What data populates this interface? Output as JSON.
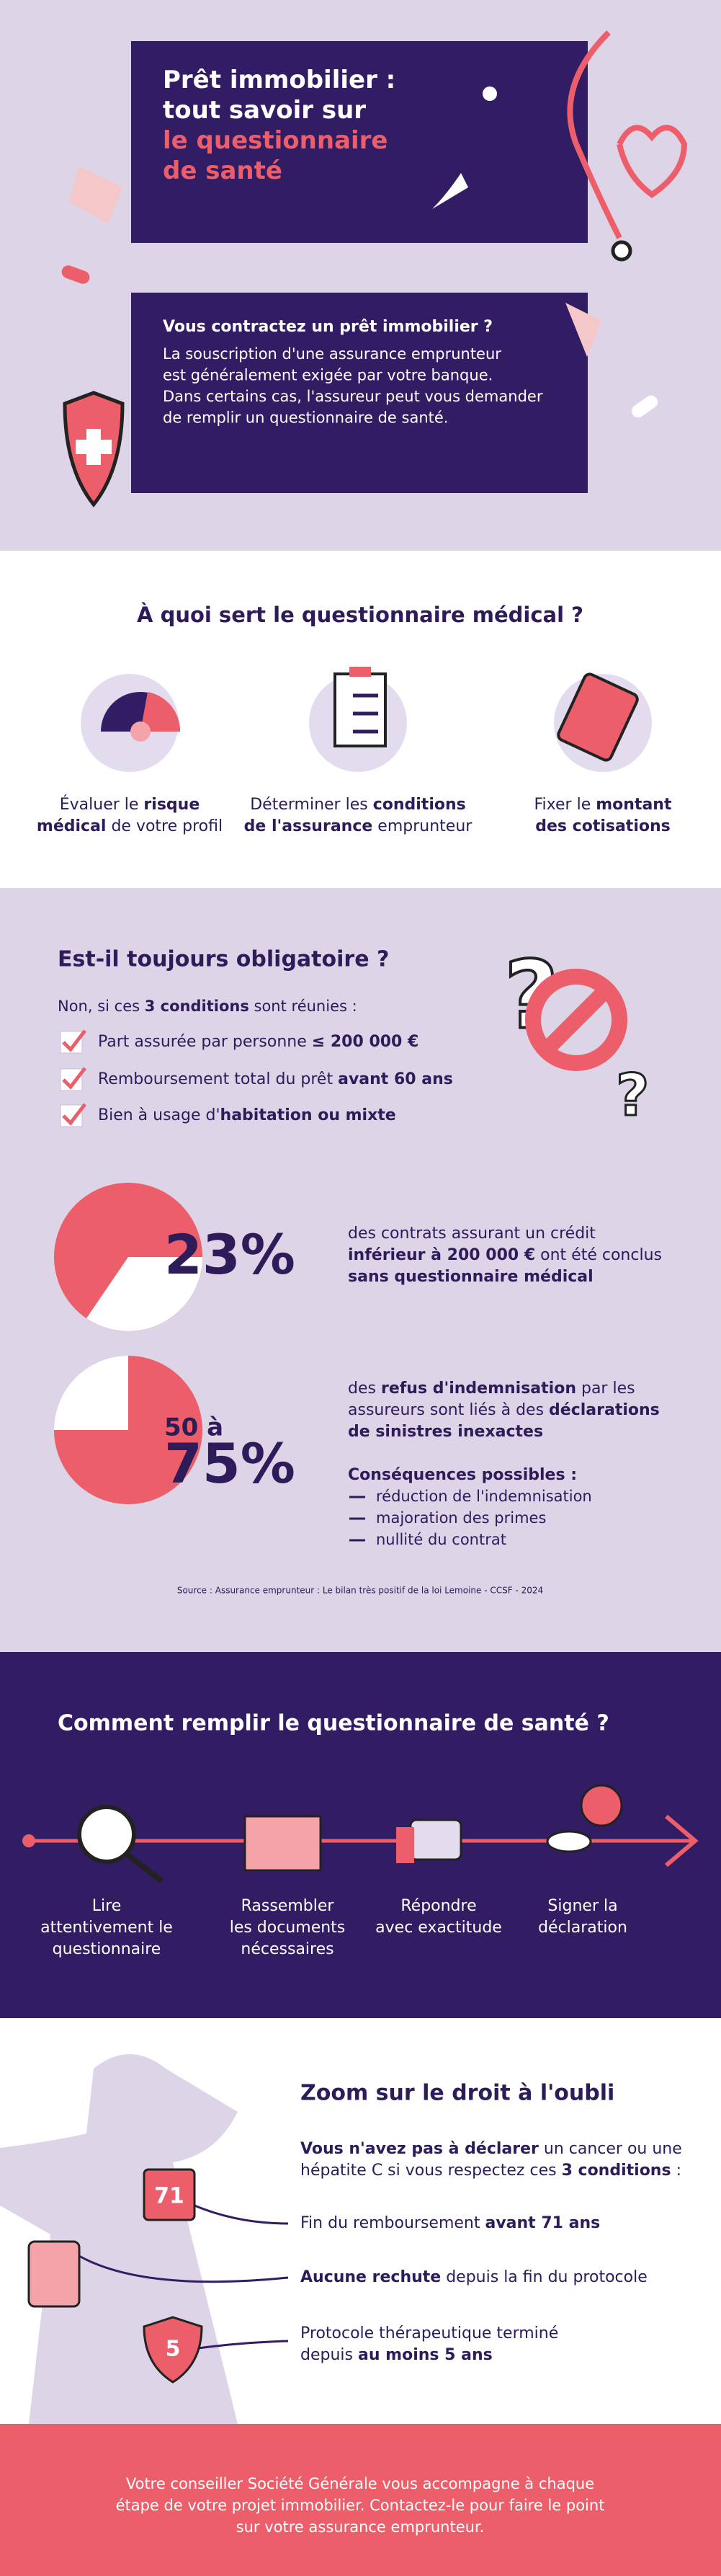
{
  "header": {
    "title": [
      [
        "Prêt immobilier :"
      ],
      [
        "tout savoir sur"
      ],
      [
        {
          "text": "le questionnaire",
          "highlight": true
        }
      ],
      [
        {
          "text": "de santé",
          "highlight": true
        }
      ]
    ],
    "intro_heading": "Vous contractez un prêt immobilier ?",
    "intro_body": [
      "La souscription d'une assurance emprunteur",
      "est généralement exigée par votre banque.",
      "Dans certains cas, l'assureur peut vous demander",
      "de remplir un questionnaire de santé."
    ]
  },
  "purpose": {
    "heading": "À quoi sert le questionnaire médical ?",
    "items": [
      [
        [
          {
            "text": "Évaluer le "
          },
          {
            "text": "risque",
            "bold": true
          }
        ],
        [
          {
            "text": "médical",
            "bold": true
          },
          {
            "text": " de votre profil"
          }
        ]
      ],
      [
        [
          {
            "text": "Déterminer les "
          },
          {
            "text": "conditions",
            "bold": true
          }
        ],
        [
          {
            "text": "de l'assurance",
            "bold": true
          },
          {
            "text": " emprunteur"
          }
        ]
      ],
      [
        [
          {
            "text": "Fixer le "
          },
          {
            "text": "montant",
            "bold": true
          }
        ],
        [
          {
            "text": "des cotisations",
            "bold": true
          }
        ]
      ]
    ]
  },
  "mandatory": {
    "heading": "Est-il toujours obligatoire ?",
    "intro": [
      [
        {
          "text": "Non, si ces "
        },
        {
          "text": "3 conditions",
          "bold": true
        },
        {
          "text": " sont réunies :"
        }
      ]
    ],
    "conditions": [
      [
        [
          {
            "text": "Part assurée par personne "
          },
          {
            "text": "≤ 200 000 €",
            "bold": true
          }
        ]
      ],
      [
        [
          {
            "text": "Remboursement total du prêt "
          },
          {
            "text": "avant 60 ans",
            "bold": true
          }
        ]
      ],
      [
        [
          {
            "text": "Bien à usage d'"
          },
          {
            "text": "habitation ou mixte",
            "bold": true
          }
        ]
      ]
    ],
    "stats": [
      {
        "figure": [
          "23%"
        ],
        "text": [
          [
            "des contrats assurant un crédit"
          ],
          [
            {
              "text": "inférieur à 200 000 €",
              "bold": true
            },
            {
              "text": " ont été conclus"
            }
          ],
          [
            {
              "text": "sans questionnaire médical",
              "bold": true
            }
          ]
        ]
      },
      {
        "figure": [
          "50 à",
          "75%"
        ],
        "text": [
          [
            {
              "text": "des "
            },
            {
              "text": "refus d'indemnisation",
              "bold": true
            },
            {
              "text": " par les"
            }
          ],
          [
            {
              "text": "assureurs sont liés à des "
            },
            {
              "text": "déclarations",
              "bold": true
            }
          ],
          [
            {
              "text": "de sinistres inexactes",
              "bold": true
            }
          ]
        ]
      }
    ],
    "consequences_heading": "Conséquences possibles :",
    "consequences": [
      "réduction de l'indemnisation",
      "majoration des primes",
      "nullité du contrat"
    ],
    "source": "Source : Assurance emprunteur : Le bilan très positif de la loi Lemoine - CCSF - 2024"
  },
  "process": {
    "heading": "Comment remplir le questionnaire de santé ?",
    "steps": [
      [
        "Lire",
        "attentivement le",
        "questionnaire"
      ],
      [
        "Rassembler",
        "les documents",
        "nécessaires"
      ],
      [
        "Répondre",
        "avec exactitude"
      ],
      [
        "Signer la",
        "déclaration"
      ]
    ]
  },
  "oubli": {
    "heading": "Zoom sur le droit à l'oubli",
    "intro": [
      [
        {
          "text": "Vous n'avez pas à déclarer",
          "bold": true
        },
        {
          "text": " un cancer ou une"
        }
      ],
      [
        {
          "text": "hépatite C si vous respectez ces "
        },
        {
          "text": "3 conditions",
          "bold": true
        },
        {
          "text": " :"
        }
      ]
    ],
    "items": [
      {
        "badge": "71",
        "text": [
          [
            {
              "text": "Fin du remboursement "
            },
            {
              "text": "avant 71 ans",
              "bold": true
            }
          ]
        ]
      },
      {
        "text": [
          [
            {
              "text": "Aucune rechute",
              "bold": true
            },
            {
              "text": " depuis la fin du protocole"
            }
          ]
        ]
      },
      {
        "badge": "5",
        "text": [
          [
            "Protocole thérapeutique terminé"
          ],
          [
            {
              "text": "depuis "
            },
            {
              "text": "au moins 5 ans",
              "bold": true
            }
          ]
        ]
      }
    ]
  },
  "footer": [
    "Votre conseiller Société Générale vous accompagne à chaque",
    "étape de votre projet immobilier. Contactez-le pour faire le point",
    "sur votre assurance emprunteur."
  ]
}
